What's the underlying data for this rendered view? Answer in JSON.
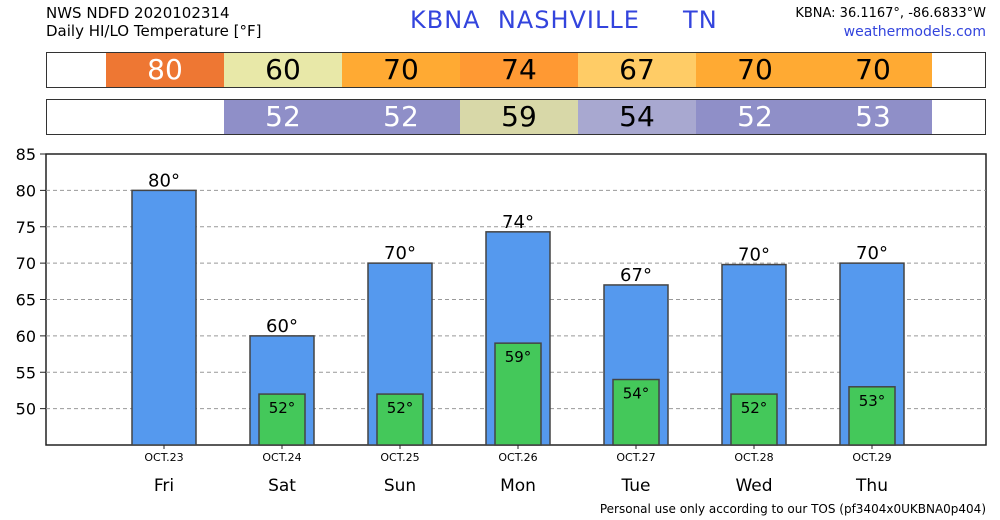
{
  "header": {
    "line1": "NWS NDFD 2020102314",
    "line2": "Daily HI/LO Temperature [°F]",
    "station": "KBNA  NASHVILLE     TN",
    "coords": "KBNA: 36.1167°, -86.6833°W",
    "site": "weathermodels.com"
  },
  "strips": {
    "hi": [
      {
        "value": "80",
        "color": "#ee7733",
        "text_color": "#ffffff"
      },
      {
        "value": "60",
        "color": "#e8e8a8",
        "text_color": "#000000"
      },
      {
        "value": "70",
        "color": "#ffaa33",
        "text_color": "#000000"
      },
      {
        "value": "74",
        "color": "#ff9933",
        "text_color": "#000000"
      },
      {
        "value": "67",
        "color": "#ffcc66",
        "text_color": "#000000"
      },
      {
        "value": "70",
        "color": "#ffaa33",
        "text_color": "#000000"
      },
      {
        "value": "70",
        "color": "#ffaa33",
        "text_color": "#000000"
      }
    ],
    "lo": [
      {
        "value": "",
        "color": "#ffffff",
        "text_color": "#000000"
      },
      {
        "value": "52",
        "color": "#8f8fc8",
        "text_color": "#ffffff"
      },
      {
        "value": "52",
        "color": "#8f8fc8",
        "text_color": "#ffffff"
      },
      {
        "value": "59",
        "color": "#d8d8a8",
        "text_color": "#000000"
      },
      {
        "value": "54",
        "color": "#a8a8d0",
        "text_color": "#000000"
      },
      {
        "value": "52",
        "color": "#8f8fc8",
        "text_color": "#ffffff"
      },
      {
        "value": "53",
        "color": "#8f8fc8",
        "text_color": "#ffffff"
      }
    ]
  },
  "chart_data": {
    "type": "bar",
    "categories": [
      "OCT.23",
      "OCT.24",
      "OCT.25",
      "OCT.26",
      "OCT.27",
      "OCT.28",
      "OCT.29"
    ],
    "days": [
      "Fri",
      "Sat",
      "Sun",
      "Mon",
      "Tue",
      "Wed",
      "Thu"
    ],
    "series": [
      {
        "values": [
          80,
          60,
          70,
          74.3,
          67,
          69.8,
          70
        ],
        "labels": [
          "80°",
          "60°",
          "70°",
          "74°",
          "67°",
          "70°",
          "70°"
        ],
        "color": "#5599ee"
      },
      {
        "values": [
          null,
          52,
          52,
          59,
          54,
          52,
          53
        ],
        "labels": [
          "",
          "52°",
          "52°",
          "59°",
          "54°",
          "52°",
          "53°"
        ],
        "color": "#44c85a"
      }
    ],
    "ylim": [
      45,
      85
    ],
    "yticks": [
      50,
      55,
      60,
      65,
      70,
      75,
      80,
      85
    ],
    "grid": true
  },
  "footer": "Personal use only according to our TOS (pf3404x0UKBNA0p404)"
}
